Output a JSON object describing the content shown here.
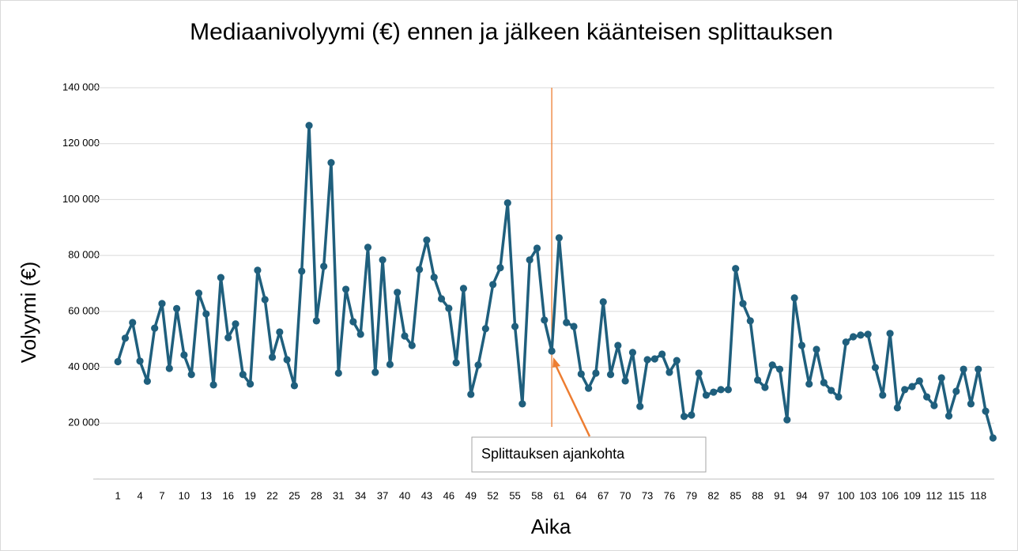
{
  "chart_data": {
    "type": "line",
    "title": "Mediaanivolyymi (€) ennen ja jälkeen käänteisen splittauksen",
    "x_label": "Aika",
    "y_label": "Volyymi (€)",
    "x": [
      1,
      2,
      3,
      4,
      5,
      6,
      7,
      8,
      9,
      10,
      11,
      12,
      13,
      14,
      15,
      16,
      17,
      18,
      19,
      20,
      21,
      22,
      23,
      24,
      25,
      26,
      27,
      28,
      29,
      30,
      31,
      32,
      33,
      34,
      35,
      36,
      37,
      38,
      39,
      40,
      41,
      42,
      43,
      44,
      45,
      46,
      47,
      48,
      49,
      50,
      51,
      52,
      53,
      54,
      55,
      56,
      57,
      58,
      59,
      60,
      61,
      62,
      63,
      64,
      65,
      66,
      67,
      68,
      69,
      70,
      71,
      72,
      73,
      74,
      75,
      76,
      77,
      78,
      79,
      80,
      81,
      82,
      83,
      84,
      85,
      86,
      87,
      88,
      89,
      90,
      91,
      92,
      93,
      94,
      95,
      96,
      97,
      98,
      99,
      100,
      101,
      102,
      103,
      104,
      105,
      106,
      107,
      108,
      109,
      110,
      111,
      112,
      113,
      114,
      115,
      116,
      117,
      118,
      119,
      120
    ],
    "series": [
      {
        "name": "Volyymi",
        "color": "#1f5f7d",
        "values": [
          42000,
          50400,
          56000,
          42200,
          35000,
          54000,
          62800,
          39600,
          61000,
          44400,
          37400,
          66500,
          59100,
          33700,
          72100,
          50600,
          55500,
          37400,
          34000,
          74700,
          64200,
          43600,
          52600,
          42700,
          33400,
          74400,
          126500,
          56600,
          76100,
          113200,
          37900,
          67900,
          56300,
          51800,
          82900,
          38200,
          78400,
          41000,
          66800,
          51200,
          47800,
          75000,
          85500,
          72200,
          64500,
          61100,
          41600,
          68200,
          30300,
          40800,
          53800,
          69600,
          75600,
          98800,
          54600,
          26900,
          78400,
          82600,
          56900,
          45800,
          86300,
          56000,
          54600,
          37600,
          32500,
          37900,
          63400,
          37400,
          47800,
          35100,
          45300,
          26000,
          42700,
          43000,
          44700,
          38200,
          42400,
          22400,
          22900,
          37900,
          30000,
          31100,
          32000,
          32000,
          75300,
          62800,
          56600,
          35400,
          32800,
          40800,
          39300,
          21200,
          64800,
          47800,
          34000,
          46400,
          34500,
          31700,
          29400,
          49000,
          50900,
          51500,
          51800,
          39900,
          30000,
          52100,
          25500,
          32000,
          33100,
          35100,
          29400,
          26300,
          36200,
          22600,
          31400,
          39300,
          26900,
          39300,
          24300,
          14700
        ]
      }
    ],
    "xlim": [
      0.5,
      120.5
    ],
    "xticks": [
      1,
      4,
      7,
      10,
      13,
      16,
      19,
      22,
      25,
      28,
      31,
      34,
      37,
      40,
      43,
      46,
      49,
      52,
      55,
      58,
      61,
      64,
      67,
      70,
      73,
      76,
      79,
      82,
      85,
      88,
      91,
      94,
      97,
      100,
      103,
      106,
      109,
      112,
      115,
      118
    ],
    "ylim": [
      0,
      140000
    ],
    "yticks": [
      {
        "value": 0,
        "label": "-"
      },
      {
        "value": 20000,
        "label": "20 000"
      },
      {
        "value": 40000,
        "label": "40 000"
      },
      {
        "value": 60000,
        "label": "60 000"
      },
      {
        "value": 80000,
        "label": "80 000"
      },
      {
        "value": 100000,
        "label": "100 000"
      },
      {
        "value": 120000,
        "label": "120 000"
      },
      {
        "value": 140000,
        "label": "140 000"
      }
    ],
    "grid": true,
    "annotation": {
      "text": "Splittauksen ajankohta",
      "x": 60,
      "color": "#ed7d31"
    }
  }
}
